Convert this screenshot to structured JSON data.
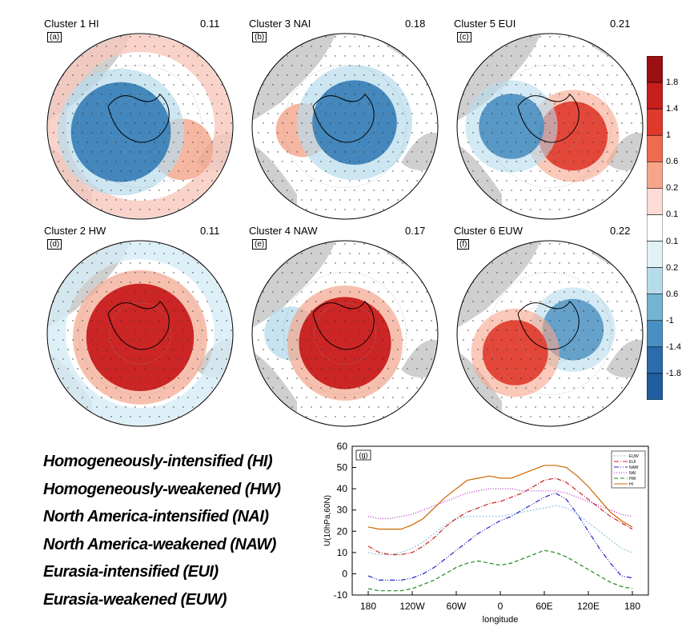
{
  "panels": [
    {
      "title": "Cluster 1 HI",
      "value": "0.11",
      "label": "(a)"
    },
    {
      "title": "Cluster 3 NAI",
      "value": "0.18",
      "label": "(b)"
    },
    {
      "title": "Cluster 5 EUI",
      "value": "0.21",
      "label": "(c)"
    },
    {
      "title": "Cluster 2 HW",
      "value": "0.11",
      "label": "(d)"
    },
    {
      "title": "Cluster 4 NAW",
      "value": "0.17",
      "label": "(e)"
    },
    {
      "title": "Cluster 6 EUW",
      "value": "0.22",
      "label": "(f)"
    }
  ],
  "colorbar": {
    "labels": [
      "1.8",
      "1.4",
      "1",
      "0.6",
      "0.2",
      "0.1",
      "0.1",
      "0.2",
      "0.6",
      "-1",
      "-1.4",
      "-1.8"
    ],
    "colors": [
      "#9b1010",
      "#c81e1e",
      "#e0392b",
      "#ef6b4f",
      "#f7a58a",
      "#fcdcd4",
      "#ffffff",
      "#e1f1f8",
      "#b6dcec",
      "#73b4d2",
      "#4a8fc1",
      "#2b6cad",
      "#1f5d9e"
    ]
  },
  "legend_lines": [
    "Homogeneously-intensified (HI)",
    "Homogeneously-weakened (HW)",
    "North America-intensified (NAI)",
    "North America-weakened (NAW)",
    "Eurasia-intensified (EUI)",
    "Eurasia-weakened (EUW)"
  ],
  "chart_data": {
    "type": "line",
    "panel_label": "(g)",
    "xlabel": "longitude",
    "ylabel": "U(10hPa,60N)",
    "x": [
      -180,
      -165,
      -150,
      -135,
      -120,
      -105,
      -90,
      -75,
      -60,
      -45,
      -30,
      -15,
      0,
      15,
      30,
      45,
      60,
      75,
      90,
      105,
      120,
      135,
      150,
      165,
      180
    ],
    "xticks": [
      -180,
      -120,
      -60,
      0,
      60,
      120,
      180
    ],
    "xticklabels": [
      "180",
      "120W",
      "60W",
      "0",
      "60E",
      "120E",
      "180"
    ],
    "ylim": [
      -10,
      60
    ],
    "yticks": [
      -10,
      0,
      10,
      20,
      30,
      40,
      50,
      60
    ],
    "series": [
      {
        "name": "EUW",
        "color": "#8fc6e0",
        "dash": "2,2",
        "values": [
          10,
          9,
          9,
          10,
          12,
          15,
          19,
          23,
          26,
          27,
          27,
          27,
          27,
          28,
          29,
          30,
          31,
          32,
          31,
          28,
          24,
          20,
          16,
          12,
          10
        ]
      },
      {
        "name": "EUI",
        "color": "#cc2222",
        "dash": "6,2,1,2",
        "values": [
          13,
          10,
          9,
          9,
          10,
          13,
          17,
          22,
          26,
          29,
          31,
          33,
          34,
          36,
          38,
          41,
          44,
          45,
          43,
          39,
          35,
          31,
          27,
          24,
          21
        ]
      },
      {
        "name": "NAW",
        "color": "#2222cc",
        "dash": "6,2,1,2,1,2",
        "values": [
          -1,
          -3,
          -3,
          -3,
          -2,
          0,
          3,
          7,
          11,
          15,
          19,
          22,
          25,
          27,
          30,
          33,
          36,
          38,
          35,
          28,
          20,
          12,
          5,
          -1,
          -2
        ]
      },
      {
        "name": "NAI",
        "color": "#bb22cc",
        "dash": "1,2",
        "values": [
          27,
          26,
          26,
          27,
          28,
          30,
          32,
          34,
          36,
          38,
          39,
          40,
          40,
          40,
          39,
          39,
          39,
          39,
          38,
          36,
          34,
          32,
          30,
          28,
          27
        ]
      },
      {
        "name": "HW",
        "color": "#228822",
        "dash": "5,3",
        "values": [
          -7,
          -8,
          -8,
          -8,
          -7,
          -5,
          -3,
          0,
          3,
          5,
          6,
          5,
          4,
          5,
          7,
          9,
          11,
          10,
          8,
          5,
          2,
          -1,
          -4,
          -6,
          -7
        ]
      },
      {
        "name": "HI",
        "color": "#cc6600",
        "dash": "",
        "values": [
          22,
          21,
          21,
          21,
          23,
          26,
          31,
          36,
          40,
          44,
          45,
          46,
          45,
          45,
          47,
          49,
          51,
          51,
          50,
          46,
          41,
          35,
          29,
          25,
          22
        ]
      }
    ]
  }
}
